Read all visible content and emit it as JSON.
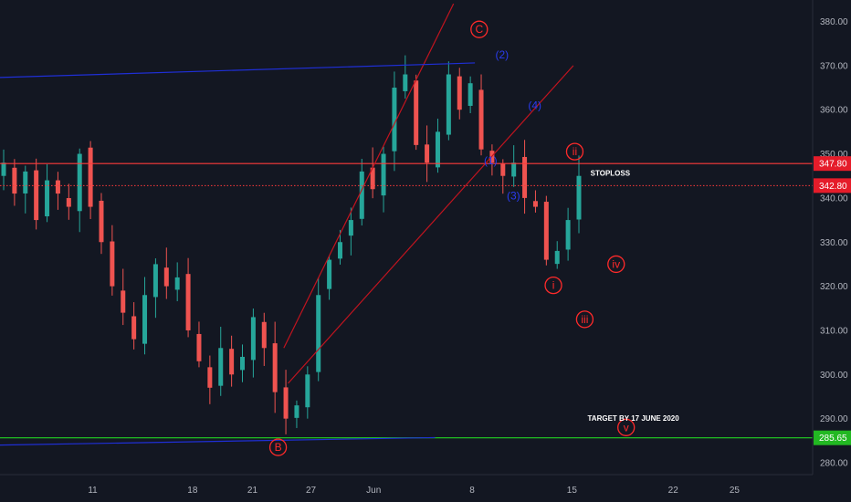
{
  "colors": {
    "background": "#131722",
    "up": "#26a69a",
    "down": "#ef5350",
    "axis_text": "#b2b5be",
    "red_line": "#ff3b3b",
    "trend_red": "#c2141f",
    "blue_line": "#1f2fd6",
    "green_line": "#22d322",
    "wave_red": "#ff2a2a",
    "wave_blue": "#2a3cf0",
    "price_tag_red": "#e51c2a",
    "price_tag_green": "#22b822"
  },
  "chart_data": {
    "type": "candlestick",
    "ylim": [
      276,
      384
    ],
    "xlim": [
      0,
      60
    ],
    "y_ticks": [
      280,
      290,
      300,
      310,
      320,
      330,
      340,
      350,
      360,
      370,
      380
    ],
    "y_tick_labels": [
      "280.00",
      "290.00",
      "300.00",
      "310.00",
      "320.00",
      "330.00",
      "340.00",
      "350.00",
      "360.00",
      "370.00",
      "380.00"
    ],
    "x_ticks": [
      {
        "pos": 6.5,
        "label": "11"
      },
      {
        "pos": 13.5,
        "label": "18"
      },
      {
        "pos": 17.7,
        "label": "21"
      },
      {
        "pos": 21.8,
        "label": "27"
      },
      {
        "pos": 26.2,
        "label": "Jun"
      },
      {
        "pos": 33.1,
        "label": "8"
      },
      {
        "pos": 40.1,
        "label": "15"
      },
      {
        "pos": 47.2,
        "label": "22"
      },
      {
        "pos": 51.5,
        "label": "25"
      }
    ],
    "closes": [
      348,
      341,
      346,
      335,
      344,
      341,
      338,
      350,
      338,
      330,
      320,
      314,
      308,
      318,
      325,
      320,
      322,
      310,
      303,
      297,
      306,
      300,
      304,
      313,
      306,
      296,
      290,
      293,
      300,
      318,
      326,
      330,
      335,
      346,
      342,
      350,
      365,
      368,
      352,
      348,
      355,
      368,
      360,
      366,
      351,
      348,
      345,
      348,
      340,
      338,
      326,
      328,
      335,
      345
    ],
    "levels": [
      {
        "value": 347.8,
        "label": "347.80",
        "style": "solid",
        "color_key": "red_line"
      },
      {
        "value": 342.8,
        "label": "342.80",
        "style": "dotted",
        "color_key": "red_line"
      },
      {
        "value": 285.65,
        "label": "285.65",
        "style": "solid",
        "color_key": "green_line"
      }
    ],
    "trendlines": [
      {
        "color_key": "trend_red",
        "from": [
          19.9,
          306
        ],
        "to": [
          31.8,
          384
        ]
      },
      {
        "color_key": "trend_red",
        "from": [
          20.2,
          298
        ],
        "to": [
          40.2,
          370
        ]
      },
      {
        "color_key": "blue_line",
        "from": [
          0,
          367.3
        ],
        "to": [
          33.3,
          370.6
        ]
      },
      {
        "color_key": "blue_line",
        "from": [
          0,
          284
        ],
        "to": [
          30.5,
          285.7
        ]
      }
    ],
    "wave_labels": [
      {
        "text": "C",
        "x": 33.6,
        "y": 378.2,
        "color_key": "wave_red",
        "circle": true
      },
      {
        "text": "B",
        "x": 19.5,
        "y": 283.5,
        "color_key": "wave_red",
        "circle": true
      },
      {
        "text": "ii",
        "x": 40.3,
        "y": 350.5,
        "color_key": "wave_red",
        "circle": true
      },
      {
        "text": "i",
        "x": 38.8,
        "y": 320.2,
        "color_key": "wave_red",
        "circle": true
      },
      {
        "text": "iv",
        "x": 43.2,
        "y": 325.0,
        "color_key": "wave_red",
        "circle": true
      },
      {
        "text": "iii",
        "x": 41.0,
        "y": 312.5,
        "color_key": "wave_red",
        "circle": true
      },
      {
        "text": "v",
        "x": 43.9,
        "y": 288.0,
        "color_key": "wave_red",
        "circle": true
      },
      {
        "text": "(2)",
        "x": 35.2,
        "y": 372.5,
        "color_key": "wave_blue",
        "circle": false
      },
      {
        "text": "(4)",
        "x": 37.5,
        "y": 361.0,
        "color_key": "wave_blue",
        "circle": false
      },
      {
        "text": "(1)",
        "x": 34.4,
        "y": 348.5,
        "color_key": "wave_blue",
        "circle": false
      },
      {
        "text": "(3)",
        "x": 36.0,
        "y": 340.5,
        "color_key": "wave_blue",
        "circle": false
      }
    ],
    "annotations": [
      {
        "text": "STOPLOSS",
        "x": 41.4,
        "y": 345.0
      },
      {
        "text": "TARGET BY 17 JUNE 2020",
        "x": 41.2,
        "y": 289.5
      }
    ]
  }
}
